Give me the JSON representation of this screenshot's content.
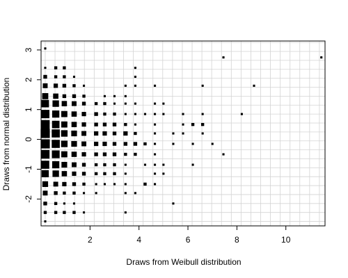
{
  "chart_data": {
    "type": "scatter",
    "marker": "filled-square",
    "marker_size_encodes": "count",
    "xlabel": "Draws from Weibull distribution",
    "ylabel": "Draws from normal distribution",
    "xlim": [
      0,
      11.6
    ],
    "ylim": [
      -2.9,
      3.3
    ],
    "xticks": [
      2,
      4,
      6,
      8,
      10
    ],
    "yticks": [
      -2,
      -1,
      0,
      1,
      2,
      3
    ],
    "grid": true,
    "grid_color": "#d3d3d3",
    "marker_color": "#000000",
    "points": [
      {
        "x": 0.17,
        "y": 3.05,
        "n": 1
      },
      {
        "x": 0.17,
        "y": 2.4,
        "n": 1
      },
      {
        "x": 0.6,
        "y": 2.4,
        "n": 2
      },
      {
        "x": 0.95,
        "y": 2.4,
        "n": 2
      },
      {
        "x": 3.85,
        "y": 2.4,
        "n": 1
      },
      {
        "x": 0.17,
        "y": 2.1,
        "n": 3
      },
      {
        "x": 0.6,
        "y": 2.1,
        "n": 2
      },
      {
        "x": 0.95,
        "y": 2.1,
        "n": 2
      },
      {
        "x": 1.35,
        "y": 2.1,
        "n": 1
      },
      {
        "x": 3.85,
        "y": 2.1,
        "n": 1
      },
      {
        "x": 0.17,
        "y": 1.8,
        "n": 5
      },
      {
        "x": 0.6,
        "y": 1.8,
        "n": 4
      },
      {
        "x": 0.95,
        "y": 1.8,
        "n": 3
      },
      {
        "x": 1.35,
        "y": 1.8,
        "n": 2
      },
      {
        "x": 1.75,
        "y": 1.8,
        "n": 1
      },
      {
        "x": 3.45,
        "y": 1.8,
        "n": 1
      },
      {
        "x": 3.85,
        "y": 1.8,
        "n": 1
      },
      {
        "x": 4.65,
        "y": 1.8,
        "n": 1
      },
      {
        "x": 6.6,
        "y": 1.8,
        "n": 1
      },
      {
        "x": 8.7,
        "y": 1.8,
        "n": 1
      },
      {
        "x": 0.17,
        "y": 1.45,
        "n": 8
      },
      {
        "x": 0.6,
        "y": 1.45,
        "n": 6
      },
      {
        "x": 0.95,
        "y": 1.45,
        "n": 3
      },
      {
        "x": 1.35,
        "y": 1.45,
        "n": 3
      },
      {
        "x": 1.75,
        "y": 1.45,
        "n": 2
      },
      {
        "x": 2.6,
        "y": 1.45,
        "n": 1
      },
      {
        "x": 3.0,
        "y": 1.45,
        "n": 1
      },
      {
        "x": 3.45,
        "y": 1.45,
        "n": 1
      },
      {
        "x": 0.17,
        "y": 1.2,
        "n": 12
      },
      {
        "x": 0.6,
        "y": 1.2,
        "n": 9
      },
      {
        "x": 0.95,
        "y": 1.2,
        "n": 6
      },
      {
        "x": 1.35,
        "y": 1.2,
        "n": 5
      },
      {
        "x": 1.75,
        "y": 1.2,
        "n": 3
      },
      {
        "x": 2.25,
        "y": 1.2,
        "n": 2
      },
      {
        "x": 2.6,
        "y": 1.2,
        "n": 2
      },
      {
        "x": 3.0,
        "y": 1.2,
        "n": 1
      },
      {
        "x": 3.45,
        "y": 1.2,
        "n": 1
      },
      {
        "x": 3.85,
        "y": 1.2,
        "n": 1
      },
      {
        "x": 4.65,
        "y": 1.2,
        "n": 1
      },
      {
        "x": 5.0,
        "y": 1.2,
        "n": 1
      },
      {
        "x": 0.17,
        "y": 0.85,
        "n": 15
      },
      {
        "x": 0.6,
        "y": 0.85,
        "n": 11
      },
      {
        "x": 0.95,
        "y": 0.85,
        "n": 8
      },
      {
        "x": 1.35,
        "y": 0.85,
        "n": 6
      },
      {
        "x": 1.75,
        "y": 0.85,
        "n": 4
      },
      {
        "x": 2.25,
        "y": 0.85,
        "n": 3
      },
      {
        "x": 2.6,
        "y": 0.85,
        "n": 2
      },
      {
        "x": 3.0,
        "y": 0.85,
        "n": 2
      },
      {
        "x": 3.45,
        "y": 0.85,
        "n": 1
      },
      {
        "x": 3.85,
        "y": 0.85,
        "n": 1
      },
      {
        "x": 4.25,
        "y": 0.85,
        "n": 1
      },
      {
        "x": 4.65,
        "y": 0.85,
        "n": 1
      },
      {
        "x": 5.0,
        "y": 0.85,
        "n": 1
      },
      {
        "x": 5.8,
        "y": 0.85,
        "n": 1
      },
      {
        "x": 6.6,
        "y": 0.85,
        "n": 1
      },
      {
        "x": 8.2,
        "y": 0.85,
        "n": 1
      },
      {
        "x": 0.17,
        "y": 0.5,
        "n": 17
      },
      {
        "x": 0.6,
        "y": 0.5,
        "n": 12
      },
      {
        "x": 0.95,
        "y": 0.5,
        "n": 8
      },
      {
        "x": 1.35,
        "y": 0.5,
        "n": 6
      },
      {
        "x": 1.75,
        "y": 0.5,
        "n": 4
      },
      {
        "x": 2.25,
        "y": 0.5,
        "n": 3
      },
      {
        "x": 2.6,
        "y": 0.5,
        "n": 3
      },
      {
        "x": 3.0,
        "y": 0.5,
        "n": 3
      },
      {
        "x": 3.45,
        "y": 0.5,
        "n": 2
      },
      {
        "x": 3.85,
        "y": 0.5,
        "n": 1
      },
      {
        "x": 4.65,
        "y": 0.5,
        "n": 1
      },
      {
        "x": 5.8,
        "y": 0.5,
        "n": 1
      },
      {
        "x": 6.2,
        "y": 0.5,
        "n": 2
      },
      {
        "x": 6.6,
        "y": 0.5,
        "n": 2
      },
      {
        "x": 0.17,
        "y": 0.2,
        "n": 18
      },
      {
        "x": 0.6,
        "y": 0.2,
        "n": 14
      },
      {
        "x": 0.95,
        "y": 0.2,
        "n": 9
      },
      {
        "x": 1.35,
        "y": 0.2,
        "n": 7
      },
      {
        "x": 1.75,
        "y": 0.2,
        "n": 5
      },
      {
        "x": 2.25,
        "y": 0.2,
        "n": 4
      },
      {
        "x": 2.6,
        "y": 0.2,
        "n": 4
      },
      {
        "x": 3.0,
        "y": 0.2,
        "n": 3
      },
      {
        "x": 3.45,
        "y": 0.2,
        "n": 4
      },
      {
        "x": 3.85,
        "y": 0.2,
        "n": 2
      },
      {
        "x": 4.65,
        "y": 0.2,
        "n": 1
      },
      {
        "x": 5.4,
        "y": 0.2,
        "n": 1
      },
      {
        "x": 5.8,
        "y": 0.2,
        "n": 1
      },
      {
        "x": 6.6,
        "y": 0.2,
        "n": 1
      },
      {
        "x": 0.17,
        "y": -0.15,
        "n": 18
      },
      {
        "x": 0.6,
        "y": -0.15,
        "n": 14
      },
      {
        "x": 0.95,
        "y": -0.15,
        "n": 9
      },
      {
        "x": 1.35,
        "y": -0.15,
        "n": 7
      },
      {
        "x": 1.75,
        "y": -0.15,
        "n": 5
      },
      {
        "x": 2.25,
        "y": -0.15,
        "n": 4
      },
      {
        "x": 2.6,
        "y": -0.15,
        "n": 4
      },
      {
        "x": 3.0,
        "y": -0.15,
        "n": 3
      },
      {
        "x": 3.45,
        "y": -0.15,
        "n": 3
      },
      {
        "x": 3.85,
        "y": -0.15,
        "n": 3
      },
      {
        "x": 4.25,
        "y": -0.15,
        "n": 2
      },
      {
        "x": 4.65,
        "y": -0.15,
        "n": 1
      },
      {
        "x": 5.4,
        "y": -0.15,
        "n": 1
      },
      {
        "x": 6.2,
        "y": -0.15,
        "n": 1
      },
      {
        "x": 7.0,
        "y": -0.15,
        "n": 1
      },
      {
        "x": 0.17,
        "y": -0.5,
        "n": 16
      },
      {
        "x": 0.6,
        "y": -0.5,
        "n": 13
      },
      {
        "x": 0.95,
        "y": -0.5,
        "n": 8
      },
      {
        "x": 1.35,
        "y": -0.5,
        "n": 6
      },
      {
        "x": 1.75,
        "y": -0.5,
        "n": 4
      },
      {
        "x": 2.25,
        "y": -0.5,
        "n": 3
      },
      {
        "x": 2.6,
        "y": -0.5,
        "n": 3
      },
      {
        "x": 3.0,
        "y": -0.5,
        "n": 3
      },
      {
        "x": 3.45,
        "y": -0.5,
        "n": 2
      },
      {
        "x": 3.85,
        "y": -0.5,
        "n": 2
      },
      {
        "x": 4.65,
        "y": -0.5,
        "n": 1
      },
      {
        "x": 7.45,
        "y": -0.5,
        "n": 1
      },
      {
        "x": 0.17,
        "y": -0.85,
        "n": 14
      },
      {
        "x": 0.6,
        "y": -0.85,
        "n": 11
      },
      {
        "x": 0.95,
        "y": -0.85,
        "n": 7
      },
      {
        "x": 1.35,
        "y": -0.85,
        "n": 5
      },
      {
        "x": 1.75,
        "y": -0.85,
        "n": 3
      },
      {
        "x": 2.25,
        "y": -0.85,
        "n": 2
      },
      {
        "x": 2.6,
        "y": -0.85,
        "n": 2
      },
      {
        "x": 3.0,
        "y": -0.85,
        "n": 2
      },
      {
        "x": 3.45,
        "y": -0.85,
        "n": 1
      },
      {
        "x": 4.25,
        "y": -0.85,
        "n": 1
      },
      {
        "x": 4.65,
        "y": -0.85,
        "n": 1
      },
      {
        "x": 5.0,
        "y": -0.85,
        "n": 1
      },
      {
        "x": 6.2,
        "y": -0.85,
        "n": 1
      },
      {
        "x": 0.17,
        "y": -1.15,
        "n": 11
      },
      {
        "x": 0.6,
        "y": -1.15,
        "n": 9
      },
      {
        "x": 0.95,
        "y": -1.15,
        "n": 6
      },
      {
        "x": 1.35,
        "y": -1.15,
        "n": 4
      },
      {
        "x": 1.75,
        "y": -1.15,
        "n": 3
      },
      {
        "x": 2.25,
        "y": -1.15,
        "n": 2
      },
      {
        "x": 2.6,
        "y": -1.15,
        "n": 2
      },
      {
        "x": 3.0,
        "y": -1.15,
        "n": 2
      },
      {
        "x": 3.45,
        "y": -1.15,
        "n": 1
      },
      {
        "x": 4.65,
        "y": -1.15,
        "n": 1
      },
      {
        "x": 5.0,
        "y": -1.15,
        "n": 1
      },
      {
        "x": 0.17,
        "y": -1.5,
        "n": 7
      },
      {
        "x": 0.6,
        "y": -1.5,
        "n": 5
      },
      {
        "x": 0.95,
        "y": -1.5,
        "n": 4
      },
      {
        "x": 1.35,
        "y": -1.5,
        "n": 3
      },
      {
        "x": 1.75,
        "y": -1.5,
        "n": 2
      },
      {
        "x": 2.25,
        "y": -1.5,
        "n": 1
      },
      {
        "x": 2.6,
        "y": -1.5,
        "n": 1
      },
      {
        "x": 3.0,
        "y": -1.5,
        "n": 1
      },
      {
        "x": 3.45,
        "y": -1.5,
        "n": 1
      },
      {
        "x": 4.25,
        "y": -1.5,
        "n": 2
      },
      {
        "x": 4.65,
        "y": -1.5,
        "n": 1
      },
      {
        "x": 0.17,
        "y": -1.8,
        "n": 5
      },
      {
        "x": 0.6,
        "y": -1.8,
        "n": 3
      },
      {
        "x": 0.95,
        "y": -1.8,
        "n": 2
      },
      {
        "x": 1.35,
        "y": -1.8,
        "n": 2
      },
      {
        "x": 1.75,
        "y": -1.8,
        "n": 1
      },
      {
        "x": 2.25,
        "y": -1.8,
        "n": 1
      },
      {
        "x": 3.45,
        "y": -1.8,
        "n": 1
      },
      {
        "x": 3.85,
        "y": -1.8,
        "n": 1
      },
      {
        "x": 0.17,
        "y": -2.15,
        "n": 3
      },
      {
        "x": 0.6,
        "y": -2.15,
        "n": 2
      },
      {
        "x": 0.95,
        "y": -2.15,
        "n": 1
      },
      {
        "x": 1.35,
        "y": -2.15,
        "n": 1
      },
      {
        "x": 5.4,
        "y": -2.15,
        "n": 1
      },
      {
        "x": 0.17,
        "y": -2.45,
        "n": 2
      },
      {
        "x": 0.6,
        "y": -2.45,
        "n": 2
      },
      {
        "x": 0.95,
        "y": -2.45,
        "n": 2
      },
      {
        "x": 1.35,
        "y": -2.45,
        "n": 2
      },
      {
        "x": 1.75,
        "y": -2.45,
        "n": 1
      },
      {
        "x": 3.45,
        "y": -2.45,
        "n": 1
      },
      {
        "x": 0.17,
        "y": -2.75,
        "n": 1
      },
      {
        "x": 7.45,
        "y": 2.75,
        "n": 1
      },
      {
        "x": 11.45,
        "y": 2.75,
        "n": 1
      }
    ]
  }
}
